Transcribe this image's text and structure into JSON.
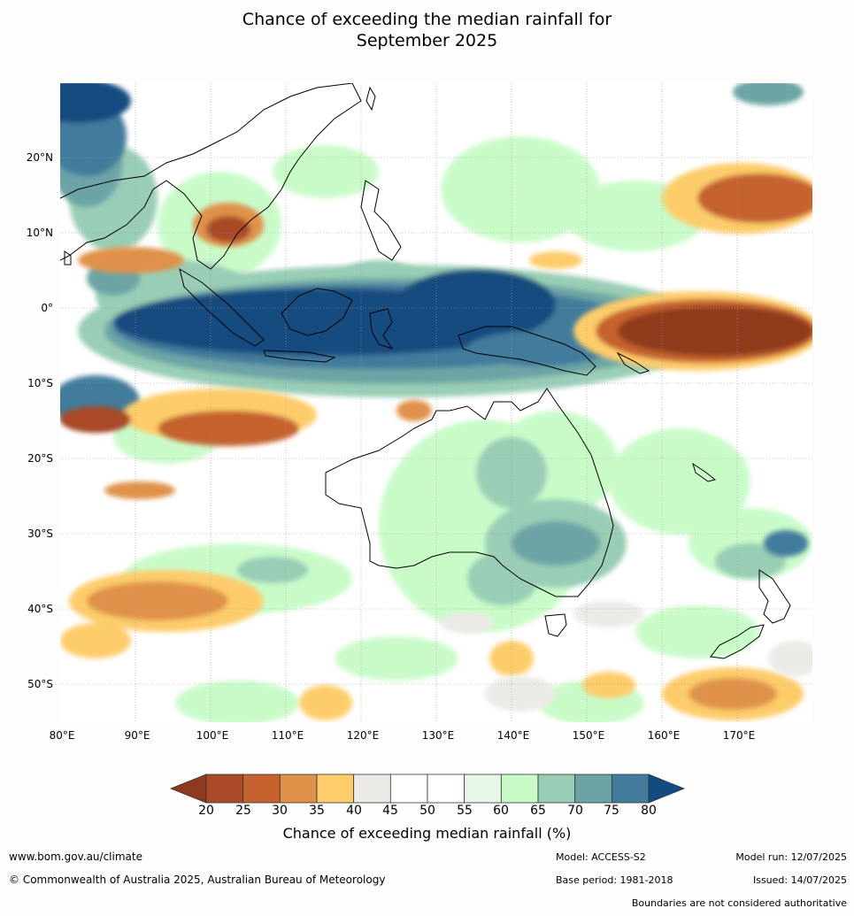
{
  "title_line1": "Chance of exceeding the median rainfall for",
  "title_line2": "September 2025",
  "map": {
    "lat_ticks": [
      "20°N",
      "10°N",
      "0°",
      "10°S",
      "20°S",
      "30°S",
      "40°S",
      "50°S"
    ],
    "lon_ticks": [
      "80°E",
      "90°E",
      "100°E",
      "110°E",
      "120°E",
      "130°E",
      "140°E",
      "150°E",
      "160°E",
      "170°E"
    ],
    "colors": {
      "lt20": "#8f3a1e",
      "c20_25": "#a94925",
      "c25_30": "#c5622f",
      "c30_35": "#df914a",
      "c35_40": "#fdcc6b",
      "c40_45": "#eceae6",
      "c45_55": "#ffffff",
      "c55_60": "#e8f6e8",
      "c60_65": "#c9fbc9",
      "c65_70": "#99cdb5",
      "c70_75": "#6ca4a6",
      "c75_80": "#437b9c",
      "gt80": "#124b80"
    }
  },
  "colorbar": {
    "ticks": [
      "20",
      "25",
      "30",
      "35",
      "40",
      "45",
      "50",
      "55",
      "60",
      "65",
      "70",
      "75",
      "80"
    ],
    "title": "Chance of exceeding median rainfall (%)"
  },
  "footer": {
    "website": "www.bom.gov.au/climate",
    "copyright": "© Commonwealth of Australia 2025, Australian Bureau of Meteorology",
    "model": "Model: ACCESS-S2",
    "base_period": "Base period: 1981-2018",
    "model_run": "Model run: 12/07/2025",
    "issued": "Issued: 14/07/2025",
    "disclaimer": "Boundaries are not considered authoritative"
  }
}
